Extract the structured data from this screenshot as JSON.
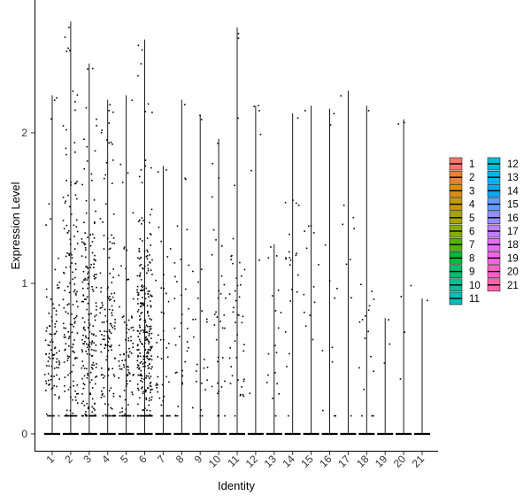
{
  "chart_data": {
    "type": "violin-scatter",
    "xlabel": "Identity",
    "ylabel": "Expression Level",
    "categories": [
      "1",
      "2",
      "3",
      "4",
      "5",
      "6",
      "7",
      "8",
      "9",
      "10",
      "11",
      "12",
      "13",
      "14",
      "15",
      "16",
      "17",
      "18",
      "19",
      "20",
      "21"
    ],
    "yticks": [
      0,
      1,
      2
    ],
    "ylim": [
      -0.12,
      2.9
    ],
    "grid": false,
    "legend_position": "right",
    "legend": [
      {
        "label": "1",
        "color": "#F8766D"
      },
      {
        "label": "2",
        "color": "#EB8335"
      },
      {
        "label": "3",
        "color": "#DA8F00"
      },
      {
        "label": "4",
        "color": "#C49A00"
      },
      {
        "label": "5",
        "color": "#A9A400"
      },
      {
        "label": "6",
        "color": "#86AC00"
      },
      {
        "label": "7",
        "color": "#53B400"
      },
      {
        "label": "8",
        "color": "#00BA38"
      },
      {
        "label": "9",
        "color": "#00BE6C"
      },
      {
        "label": "10",
        "color": "#00C094"
      },
      {
        "label": "11",
        "color": "#00C0B8"
      },
      {
        "label": "12",
        "color": "#00BDD4"
      },
      {
        "label": "13",
        "color": "#00B6EB"
      },
      {
        "label": "14",
        "color": "#00A9FF"
      },
      {
        "label": "15",
        "color": "#619CFF"
      },
      {
        "label": "16",
        "color": "#9590FF"
      },
      {
        "label": "17",
        "color": "#C17FFF"
      },
      {
        "label": "18",
        "color": "#E36EF6"
      },
      {
        "label": "19",
        "color": "#F564E3"
      },
      {
        "label": "20",
        "color": "#FF61C9"
      },
      {
        "label": "21",
        "color": "#FF65AC"
      }
    ],
    "groups": [
      {
        "id": "1",
        "max": 2.25,
        "n": 95,
        "center": 0.55,
        "spread": 0.28
      },
      {
        "id": "2",
        "max": 2.74,
        "n": 160,
        "center": 0.75,
        "spread": 0.55
      },
      {
        "id": "3",
        "max": 2.46,
        "n": 210,
        "center": 0.6,
        "spread": 0.45
      },
      {
        "id": "4",
        "max": 2.22,
        "n": 150,
        "center": 0.55,
        "spread": 0.45
      },
      {
        "id": "5",
        "max": 2.25,
        "n": 95,
        "center": 0.4,
        "spread": 0.3
      },
      {
        "id": "6",
        "max": 2.62,
        "n": 300,
        "center": 0.55,
        "spread": 0.38
      },
      {
        "id": "7",
        "max": 1.78,
        "n": 45,
        "center": 0.5,
        "spread": 0.35
      },
      {
        "id": "8",
        "max": 2.22,
        "n": 35,
        "center": 0.6,
        "spread": 0.45
      },
      {
        "id": "9",
        "max": 2.12,
        "n": 25,
        "center": 0.55,
        "spread": 0.35
      },
      {
        "id": "10",
        "max": 1.96,
        "n": 35,
        "center": 0.6,
        "spread": 0.4
      },
      {
        "id": "11",
        "max": 2.7,
        "n": 45,
        "center": 0.65,
        "spread": 0.4
      },
      {
        "id": "12",
        "max": 2.18,
        "n": 7,
        "center": 1.7,
        "spread": 0.6
      },
      {
        "id": "13",
        "max": 1.26,
        "n": 18,
        "center": 0.6,
        "spread": 0.35
      },
      {
        "id": "14",
        "max": 2.13,
        "n": 22,
        "center": 1.1,
        "spread": 0.4
      },
      {
        "id": "15",
        "max": 2.18,
        "n": 14,
        "center": 0.8,
        "spread": 0.35
      },
      {
        "id": "16",
        "max": 2.16,
        "n": 12,
        "center": 0.6,
        "spread": 0.4
      },
      {
        "id": "17",
        "max": 2.28,
        "n": 9,
        "center": 0.9,
        "spread": 0.6
      },
      {
        "id": "18",
        "max": 2.18,
        "n": 18,
        "center": 0.6,
        "spread": 0.4
      },
      {
        "id": "19",
        "max": 0.77,
        "n": 3,
        "center": 0.45,
        "spread": 0.2
      },
      {
        "id": "20",
        "max": 2.09,
        "n": 6,
        "center": 1.0,
        "spread": 0.55
      },
      {
        "id": "21",
        "max": 0.9,
        "n": 1,
        "center": 0.5,
        "spread": 0.1
      }
    ]
  }
}
